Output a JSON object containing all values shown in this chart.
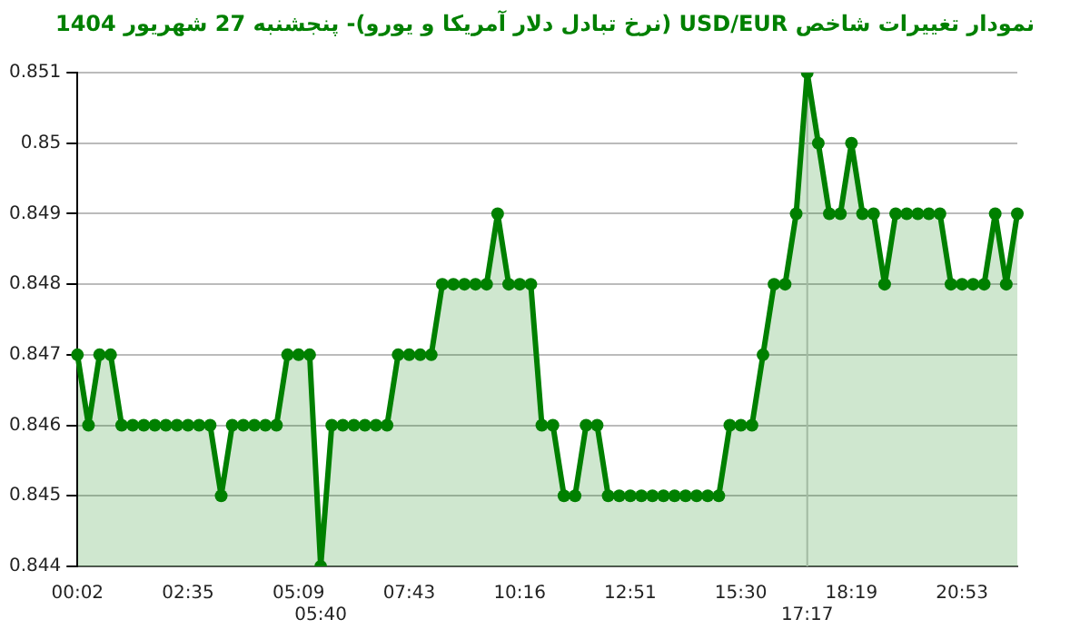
{
  "chart_data": {
    "type": "area",
    "title": "نمودار تغییرات شاخص USD/EUR (نرخ تبادل دلار آمریکا و یورو)- پنجشنبه  27 شهریور 1404",
    "categories": [
      "00:02",
      null,
      null,
      null,
      null,
      null,
      null,
      null,
      null,
      null,
      "02:35",
      null,
      null,
      null,
      null,
      null,
      null,
      null,
      null,
      null,
      "05:09",
      null,
      "05:40",
      null,
      null,
      null,
      null,
      null,
      null,
      null,
      "07:43",
      null,
      null,
      null,
      null,
      null,
      null,
      null,
      null,
      null,
      "10:16",
      null,
      null,
      null,
      null,
      null,
      null,
      null,
      null,
      null,
      "12:51",
      null,
      null,
      null,
      null,
      null,
      null,
      null,
      null,
      null,
      "15:30",
      null,
      null,
      null,
      null,
      null,
      "17:17",
      null,
      null,
      null,
      "18:19",
      null,
      null,
      null,
      null,
      null,
      null,
      null,
      null,
      null,
      "20:53",
      null,
      null,
      null,
      null,
      null
    ],
    "series": [
      {
        "color": "#008000",
        "values": [
          0.847,
          0.846,
          0.847,
          0.847,
          0.846,
          0.846,
          0.846,
          0.846,
          0.846,
          0.846,
          0.846,
          0.846,
          0.846,
          0.845,
          0.846,
          0.846,
          0.846,
          0.846,
          0.846,
          0.847,
          0.847,
          0.847,
          0.844,
          0.846,
          0.846,
          0.846,
          0.846,
          0.846,
          0.846,
          0.847,
          0.847,
          0.847,
          0.847,
          0.848,
          0.848,
          0.848,
          0.848,
          0.848,
          0.849,
          0.848,
          0.848,
          0.848,
          0.846,
          0.846,
          0.845,
          0.845,
          0.846,
          0.846,
          0.845,
          0.845,
          0.845,
          0.845,
          0.845,
          0.845,
          0.845,
          0.845,
          0.845,
          0.845,
          0.845,
          0.846,
          0.846,
          0.846,
          0.847,
          0.848,
          0.848,
          0.849,
          0.851,
          0.85,
          0.849,
          0.849,
          0.85,
          0.849,
          0.849,
          0.848,
          0.849,
          0.849,
          0.849,
          0.849,
          0.849,
          0.848,
          0.848,
          0.848,
          0.848,
          0.849,
          0.848,
          0.849
        ]
      }
    ],
    "ylim": [
      0.844,
      0.851
    ],
    "yticks": [
      0.844,
      0.845,
      0.846,
      0.847,
      0.848,
      0.849,
      0.85,
      0.851
    ],
    "ref_lines": [
      {
        "axis": "x",
        "value": "17:17",
        "color": "#c8c8c8"
      }
    ],
    "grid": "y",
    "marker": "circle",
    "legend": false
  }
}
